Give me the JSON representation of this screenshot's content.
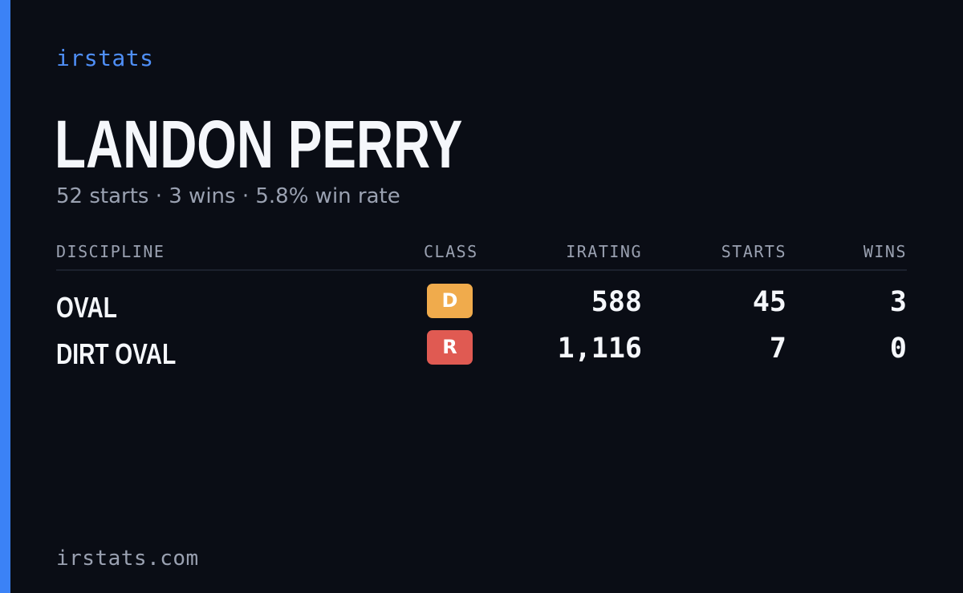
{
  "brand": "irstats",
  "driver": {
    "name": "LANDON PERRY",
    "summary": "52 starts · 3 wins · 5.8% win rate"
  },
  "table": {
    "headers": {
      "discipline": "DISCIPLINE",
      "class": "CLASS",
      "irating": "IRATING",
      "starts": "STARTS",
      "wins": "WINS"
    },
    "rows": [
      {
        "discipline": "OVAL",
        "class": "D",
        "class_color": "#f0ab4c",
        "irating": "588",
        "starts": "45",
        "wins": "3"
      },
      {
        "discipline": "DIRT OVAL",
        "class": "R",
        "class_color": "#e05a52",
        "irating": "1,116",
        "starts": "7",
        "wins": "0"
      }
    ]
  },
  "footer": "irstats.com",
  "colors": {
    "accent": "#3b82f6",
    "background": "#0a0d15"
  }
}
